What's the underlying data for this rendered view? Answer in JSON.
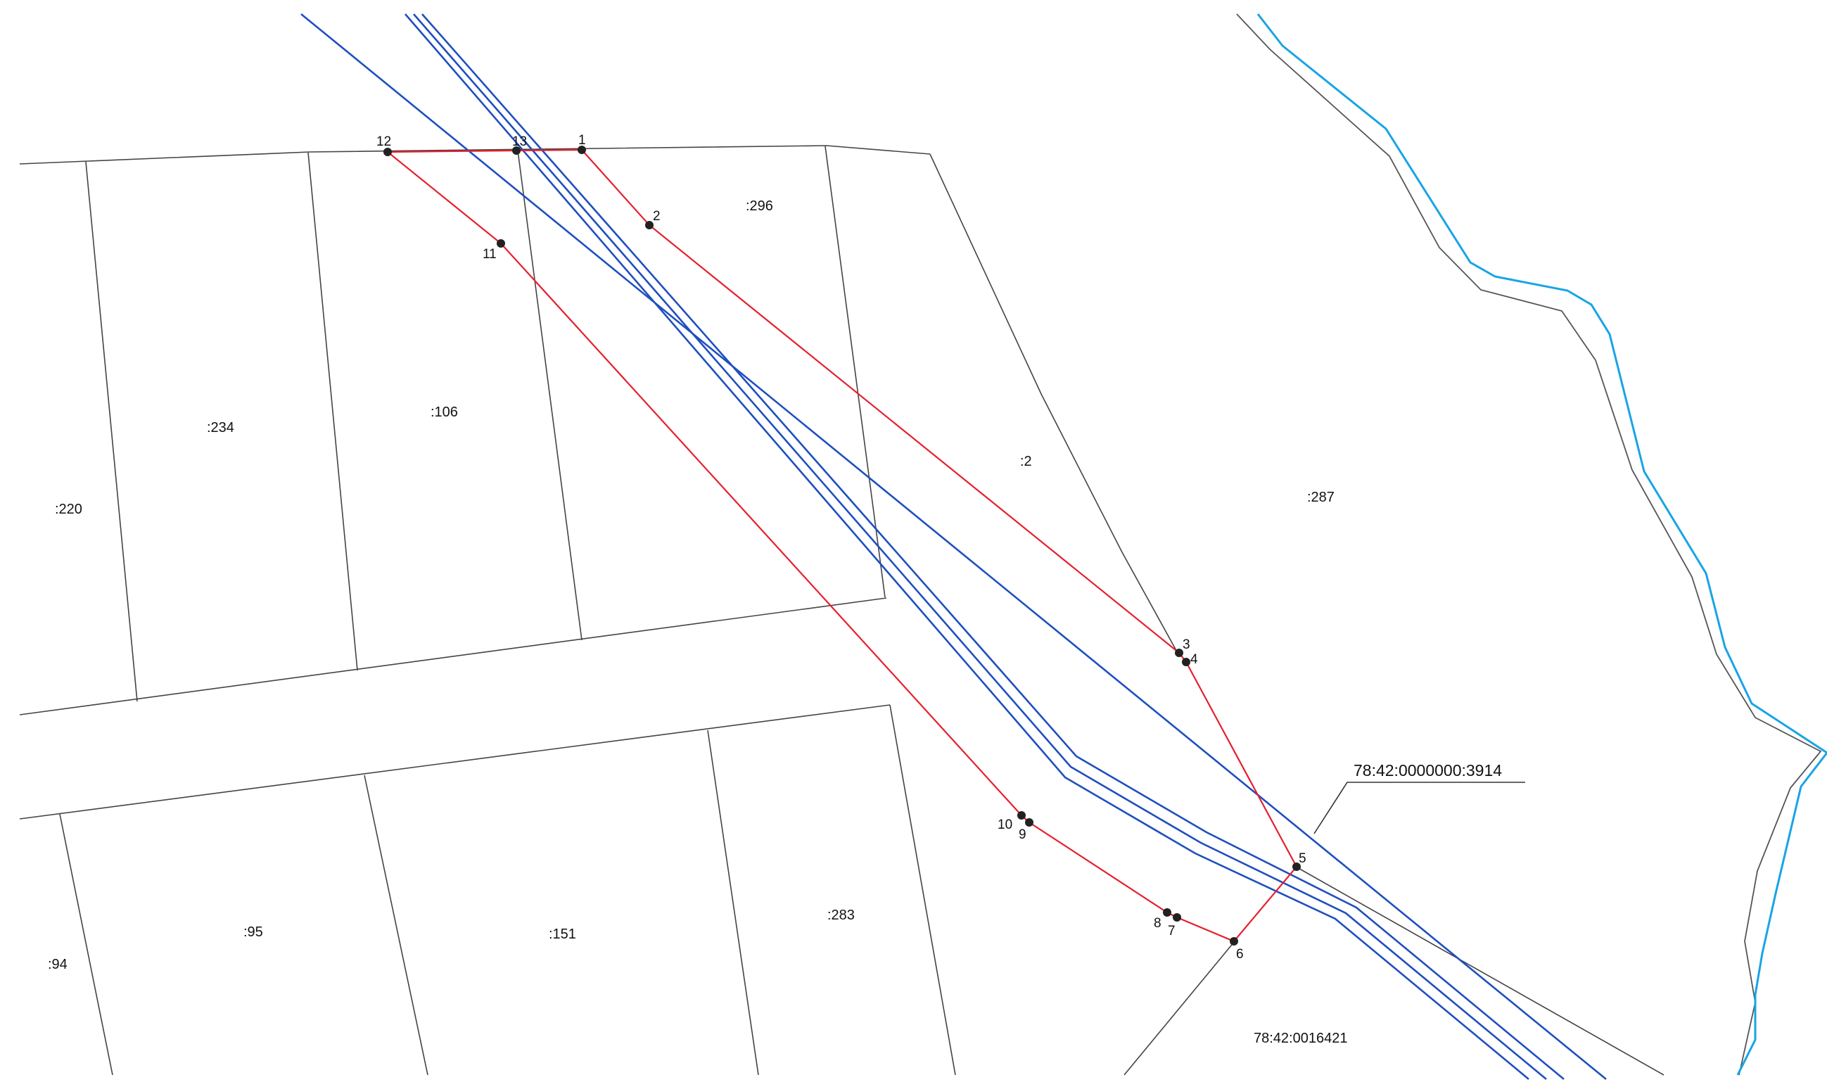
{
  "parcel_labels": {
    "p220": ":220",
    "p234": ":234",
    "p106": ":106",
    "p296": ":296",
    "p2": ":2",
    "p287": ":287",
    "p94": ":94",
    "p95": ":95",
    "p151": ":151",
    "p283": ":283"
  },
  "cadastral": {
    "road_label": "78:42:0000000:3914",
    "parcel_label": "78:42:0016421"
  },
  "points": [
    "1",
    "2",
    "3",
    "4",
    "5",
    "6",
    "7",
    "8",
    "9",
    "10",
    "11",
    "12",
    "13"
  ],
  "colors": {
    "boundary": "#e5202e",
    "pipeline": "#1f4fbf",
    "river": "#18a4e6",
    "parcel_lines": "#444444"
  }
}
